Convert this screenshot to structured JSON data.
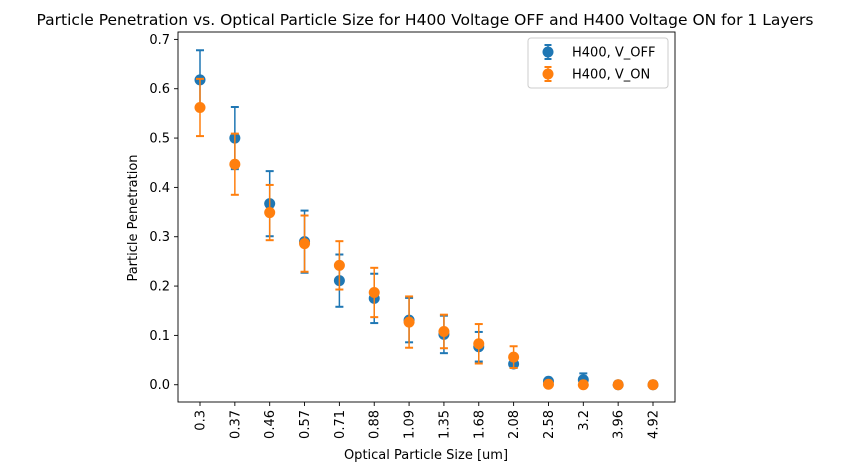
{
  "chart_data": {
    "type": "scatter",
    "title": "Particle Penetration vs. Optical Particle Size for H400 Voltage OFF and H400 Voltage ON for 1 Layers",
    "xlabel": "Optical Particle Size [um]",
    "ylabel": "Particle Penetration",
    "categories": [
      "0.3",
      "0.37",
      "0.46",
      "0.57",
      "0.71",
      "0.88",
      "1.09",
      "1.35",
      "1.68",
      "2.08",
      "2.58",
      "3.2",
      "3.96",
      "4.92"
    ],
    "ylim": [
      -0.035,
      0.715
    ],
    "yticks": [
      0.0,
      0.1,
      0.2,
      0.3,
      0.4,
      0.5,
      0.6,
      0.7
    ],
    "ytick_labels": [
      "0.0",
      "0.1",
      "0.2",
      "0.3",
      "0.4",
      "0.5",
      "0.6",
      "0.7"
    ],
    "grid": false,
    "legend_position": "top-right",
    "series": [
      {
        "name": "H400, V_OFF",
        "color": "#1f77b4",
        "values": [
          0.618,
          0.5,
          0.367,
          0.29,
          0.211,
          0.175,
          0.131,
          0.102,
          0.077,
          0.042,
          0.007,
          0.01,
          0.0,
          0.0
        ],
        "err": [
          0.06,
          0.063,
          0.066,
          0.063,
          0.053,
          0.05,
          0.045,
          0.038,
          0.03,
          0.008,
          0.005,
          0.013,
          0.0,
          0.0
        ]
      },
      {
        "name": "H400, V_ON",
        "color": "#ff7f0e",
        "values": [
          0.562,
          0.447,
          0.349,
          0.286,
          0.242,
          0.187,
          0.127,
          0.108,
          0.083,
          0.056,
          0.001,
          0.0,
          0.0,
          0.0
        ],
        "err": [
          0.058,
          0.062,
          0.056,
          0.057,
          0.049,
          0.05,
          0.052,
          0.034,
          0.04,
          0.022,
          0.004,
          0.0,
          0.0,
          0.0
        ]
      }
    ]
  }
}
